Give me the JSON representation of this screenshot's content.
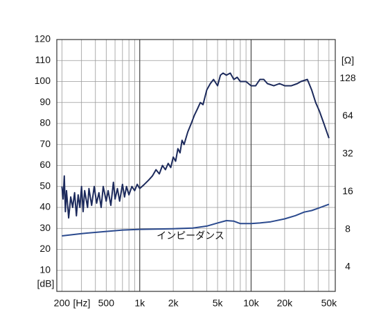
{
  "chart_data": {
    "type": "line",
    "xlabel": "[Hz]",
    "ylabel": "[dB]",
    "y2label": "[Ω]",
    "annotations": [
      "インピーダンス"
    ],
    "xscale": "log",
    "y2scale": "log",
    "grid": true,
    "xlim": [
      180,
      57000
    ],
    "ylim": [
      0,
      120
    ],
    "y2lim": [
      2.56,
      262
    ],
    "xticks": [
      200,
      500,
      {
        "value": 1000,
        "label": "1k"
      },
      {
        "value": 2000,
        "label": "2k"
      },
      {
        "value": 5000,
        "label": "5k"
      },
      {
        "value": 10000,
        "label": "10k"
      },
      {
        "value": 20000,
        "label": "20k"
      },
      {
        "value": 50000,
        "label": "50k"
      }
    ],
    "xgrid": [
      200,
      300,
      400,
      500,
      600,
      700,
      800,
      900,
      1000,
      2000,
      3000,
      4000,
      5000,
      6000,
      7000,
      8000,
      9000,
      10000,
      20000,
      30000,
      40000,
      50000
    ],
    "yticks": [
      10,
      20,
      30,
      40,
      50,
      60,
      70,
      80,
      90,
      100,
      110,
      120
    ],
    "y2ticks": [
      4,
      8,
      16,
      32,
      64,
      128
    ],
    "series": [
      {
        "color": "#1c2a5c",
        "x": [
          200,
          205,
          210,
          215,
          220,
          230,
          240,
          250,
          260,
          270,
          280,
          290,
          300,
          310,
          320,
          340,
          350,
          370,
          390,
          410,
          430,
          450,
          470,
          500,
          520,
          550,
          580,
          600,
          630,
          660,
          700,
          730,
          760,
          800,
          850,
          900,
          950,
          1000,
          1100,
          1200,
          1300,
          1400,
          1500,
          1600,
          1700,
          1800,
          1900,
          2000,
          2100,
          2200,
          2300,
          2400,
          2500,
          2700,
          2900,
          3100,
          3300,
          3500,
          3700,
          4000,
          4300,
          4600,
          5000,
          5300,
          5600,
          6000,
          6500,
          7000,
          7500,
          8000,
          9000,
          10000,
          11000,
          12000,
          13000,
          14000,
          16000,
          18000,
          20000,
          23000,
          26000,
          28000,
          32000,
          35000,
          38000,
          41000,
          45000,
          50000
        ],
        "values": [
          50,
          44,
          55,
          38,
          48,
          35,
          45,
          40,
          47,
          36,
          46,
          40,
          50,
          38,
          48,
          40,
          49,
          41,
          50,
          42,
          47,
          40,
          50,
          43,
          48,
          41,
          52,
          44,
          49,
          43,
          51,
          45,
          50,
          46,
          50,
          48,
          51,
          49,
          51,
          53,
          55,
          58,
          56,
          60,
          58,
          61,
          59,
          64,
          62,
          68,
          66,
          72,
          70,
          76,
          80,
          84,
          87,
          90,
          89,
          96,
          99,
          101,
          98,
          103,
          104,
          103,
          104,
          101,
          102,
          100,
          100,
          98,
          98,
          101,
          101,
          99,
          98,
          99,
          98,
          98,
          99,
          100,
          101,
          96,
          90,
          86,
          80,
          73
        ]
      },
      {
        "color": "#2b4a8e",
        "axis": "y2",
        "x": [
          200,
          300,
          500,
          700,
          1000,
          2000,
          3000,
          4000,
          5000,
          6000,
          7000,
          8000,
          10000,
          12000,
          15000,
          20000,
          25000,
          30000,
          35000,
          40000,
          50000
        ],
        "values": [
          7.1,
          7.4,
          7.7,
          7.9,
          8.0,
          8.1,
          8.2,
          8.5,
          9.0,
          9.4,
          9.3,
          8.9,
          8.9,
          9.0,
          9.2,
          9.7,
          10.3,
          11.0,
          11.3,
          11.8,
          12.7
        ]
      }
    ]
  }
}
